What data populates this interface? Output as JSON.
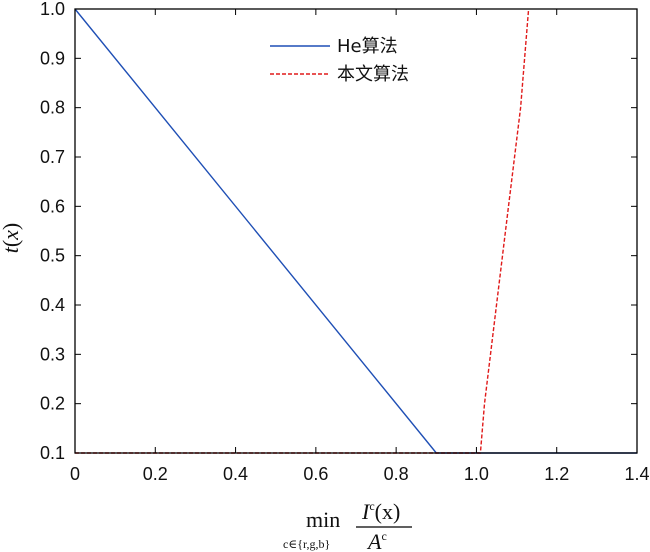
{
  "chart_data": {
    "type": "line",
    "xlim": [
      0,
      1.4
    ],
    "ylim": [
      0.1,
      1.0
    ],
    "xticks": [
      0,
      0.2,
      0.4,
      0.6,
      0.8,
      1.0,
      1.2,
      1.4
    ],
    "xtick_labels": [
      "0",
      "0.2",
      "0.4",
      "0.6",
      "0.8",
      "1.0",
      "1.2",
      "1.4"
    ],
    "yticks": [
      0.1,
      0.2,
      0.3,
      0.4,
      0.5,
      0.6,
      0.7,
      0.8,
      0.9,
      1.0
    ],
    "ytick_labels": [
      "0.1",
      "0.2",
      "0.3",
      "0.4",
      "0.5",
      "0.6",
      "0.7",
      "0.8",
      "0.9",
      "1.0"
    ],
    "grid": false,
    "legend_position": "top-center",
    "xlabel": {
      "min": "min",
      "subscript": "c∈{r,g,b}",
      "numerator_I": "I",
      "numerator_sup": "c",
      "numerator_rest": "(x)",
      "denominator_A": "A",
      "denominator_sup": "c"
    },
    "ylabel": {
      "t": "t",
      "paren_open": "(",
      "x": "x",
      "paren_close": ")"
    },
    "series": [
      {
        "name": "He算法",
        "color": "#1f4fb5",
        "dash": "solid",
        "x": [
          0,
          0.9,
          1.4
        ],
        "y": [
          1.0,
          0.1,
          0.1
        ]
      },
      {
        "name": "本文算法",
        "color": "#e01a1a",
        "dash": "dashed",
        "x": [
          0,
          1.01,
          1.02,
          1.05,
          1.08,
          1.11,
          1.13
        ],
        "y": [
          0.1,
          0.1,
          0.2,
          0.4,
          0.6,
          0.8,
          1.0
        ]
      }
    ]
  }
}
